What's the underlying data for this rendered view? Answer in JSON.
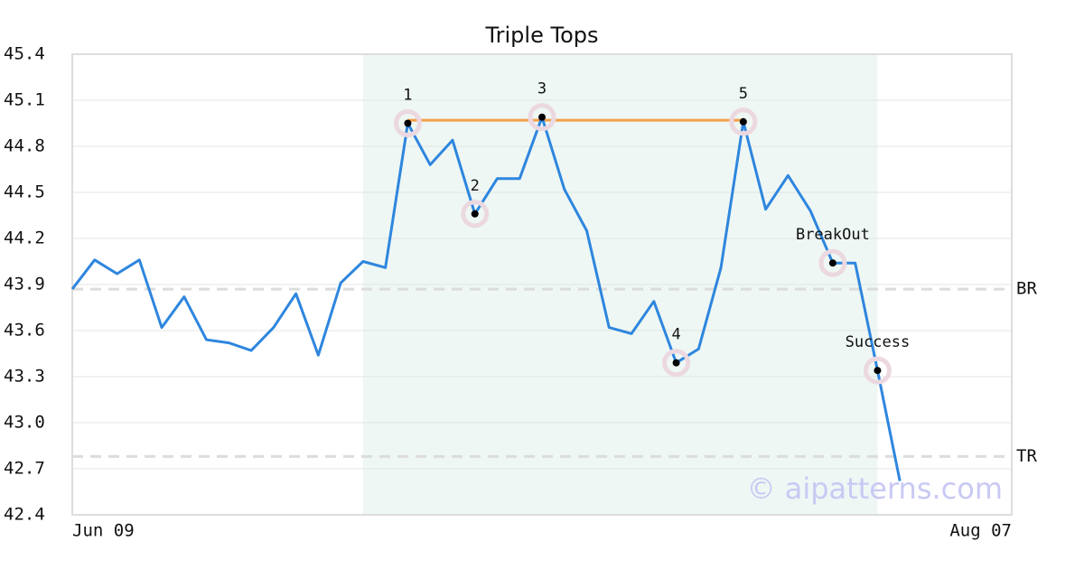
{
  "chart_data": {
    "type": "line",
    "title": "Triple Tops",
    "x": [
      0,
      1,
      2,
      3,
      4,
      5,
      6,
      7,
      8,
      9,
      10,
      11,
      12,
      13,
      14,
      15,
      16,
      17,
      18,
      19,
      20,
      21,
      22,
      23,
      24,
      25,
      26,
      27,
      28,
      29,
      30,
      31,
      32,
      33,
      34,
      35,
      36,
      37
    ],
    "series": [
      {
        "color": "#2e86de",
        "values": [
          43.87,
          44.06,
          43.97,
          44.06,
          43.62,
          43.82,
          43.54,
          43.52,
          43.47,
          43.62,
          43.84,
          43.44,
          43.91,
          44.05,
          44.01,
          44.95,
          44.68,
          44.84,
          44.36,
          44.59,
          44.59,
          44.99,
          44.52,
          44.25,
          43.62,
          43.58,
          43.79,
          43.39,
          43.48,
          44.01,
          44.96,
          44.39,
          44.61,
          44.38,
          44.04,
          44.04,
          43.34,
          42.62
        ]
      }
    ],
    "xlim": [
      0,
      42
    ],
    "xticks": [
      {
        "value": 0,
        "label": "Jun 09"
      },
      {
        "value": 42,
        "label": "Aug 07"
      }
    ],
    "ylim": [
      42.4,
      45.4
    ],
    "yticks": [
      42.4,
      42.7,
      {
        "value": 43.0,
        "label": "43.0"
      },
      43.3,
      43.6,
      43.9,
      44.2,
      44.5,
      44.8,
      45.1,
      45.4
    ],
    "grid": true,
    "shade": {
      "from": 13,
      "to": 36,
      "color": "#eef7f4"
    },
    "resistance": {
      "from": 15,
      "to": 30,
      "value": 44.97,
      "color": "#f4a04a"
    },
    "levels": [
      {
        "name": "BR",
        "value": 43.87
      },
      {
        "name": "TR",
        "value": 42.78
      }
    ],
    "annotations": [
      {
        "text": "1",
        "index": 15
      },
      {
        "text": "2",
        "index": 18
      },
      {
        "text": "3",
        "index": 21
      },
      {
        "text": "4",
        "index": 27
      },
      {
        "text": "5",
        "index": 30
      },
      {
        "text": "BreakOut",
        "index": 34
      },
      {
        "text": "Success",
        "index": 36
      }
    ],
    "watermark": "© aipatterns.com"
  }
}
